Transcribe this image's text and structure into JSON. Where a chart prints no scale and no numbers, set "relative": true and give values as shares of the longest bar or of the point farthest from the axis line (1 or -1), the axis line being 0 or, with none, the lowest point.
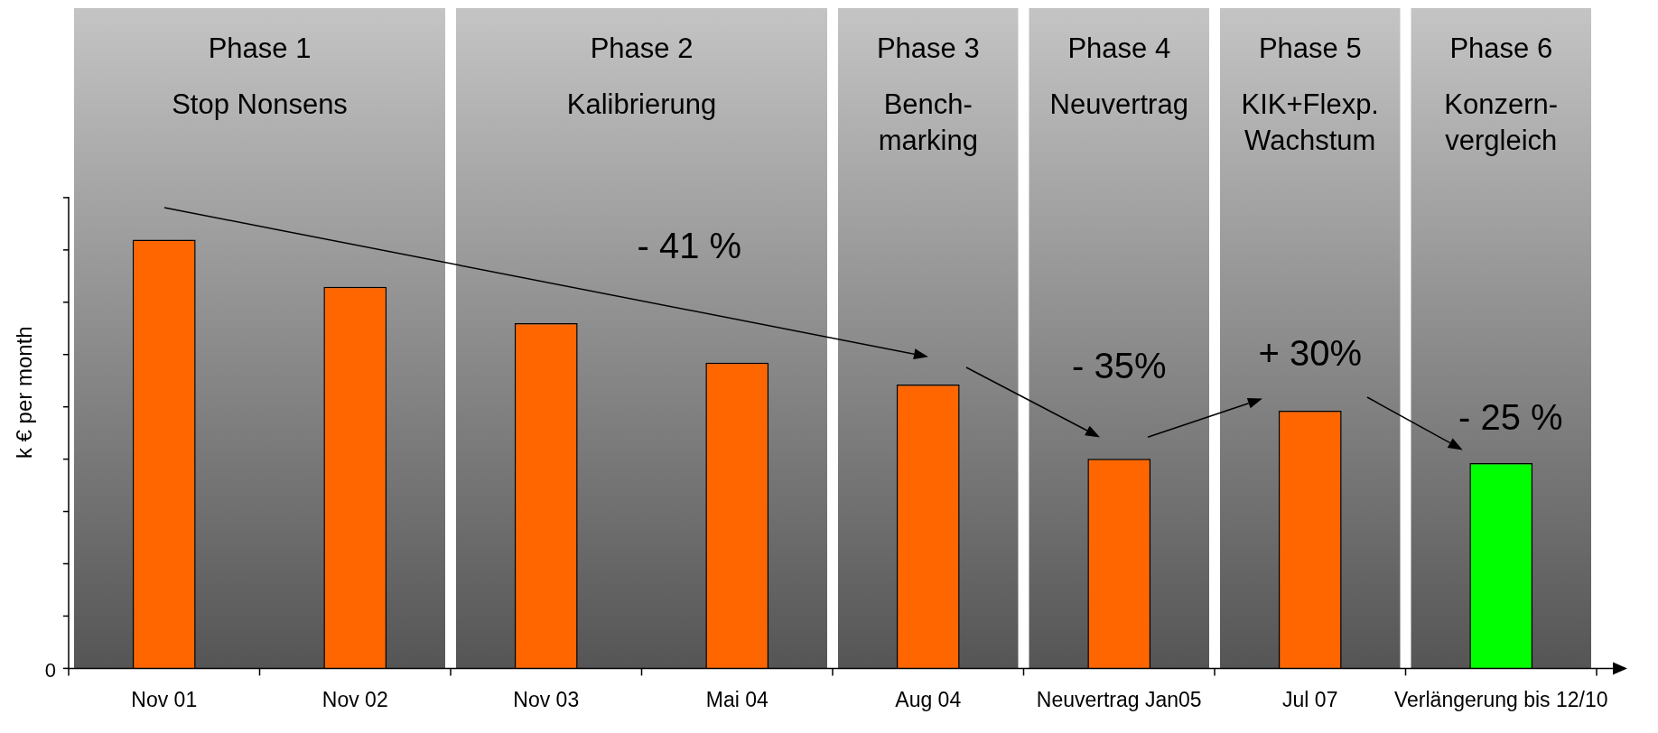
{
  "chart_data": {
    "type": "bar",
    "relative": true,
    "ylabel": "k € per month",
    "categories": [
      "Nov 01",
      "Nov 02",
      "Nov 03",
      "Mai 04",
      "Aug 04",
      "Neuvertrag Jan05",
      "Jul 07",
      "Verlängerung bis 12/10"
    ],
    "values": [
      1,
      0.89,
      0.805,
      0.713,
      0.662,
      0.489,
      0.601,
      0.479
    ],
    "colors": [
      "#ff6600",
      "#ff6600",
      "#ff6600",
      "#ff6600",
      "#ff6600",
      "#ff6600",
      "#ff6600",
      "#00ff00"
    ],
    "bands": [
      {
        "axis": "x",
        "from": "Nov 01",
        "to": "Nov 02",
        "label": "Phase 1\nStop Nonsens",
        "color": "#c4c4c4"
      },
      {
        "axis": "x",
        "from": "Nov 03",
        "to": "Mai 04",
        "label": "Phase 2\nKalibrierung",
        "color": "#c4c4c4"
      },
      {
        "axis": "x",
        "from": "Aug 04",
        "to": "Aug 04",
        "label": "Phase 3\nBench-\nmarking",
        "color": "#c4c4c4"
      },
      {
        "axis": "x",
        "from": "Neuvertrag Jan05",
        "to": "Neuvertrag Jan05",
        "label": "Phase 4\nNeuvertrag",
        "color": "#c4c4c4"
      },
      {
        "axis": "x",
        "from": "Jul 07",
        "to": "Jul 07",
        "label": "Phase 5\nKIK+Flexp.\nWachstum",
        "color": "#c4c4c4"
      },
      {
        "axis": "x",
        "from": "Verlängerung bis 12/10",
        "to": "Verlängerung bis 12/10",
        "label": "Phase 6\nKonzern-\nvergleich",
        "color": "#c4c4c4"
      }
    ],
    "annotations": [
      "0",
      "- 41 %",
      "- 35%",
      "+ 30%",
      "- 25 %"
    ]
  }
}
